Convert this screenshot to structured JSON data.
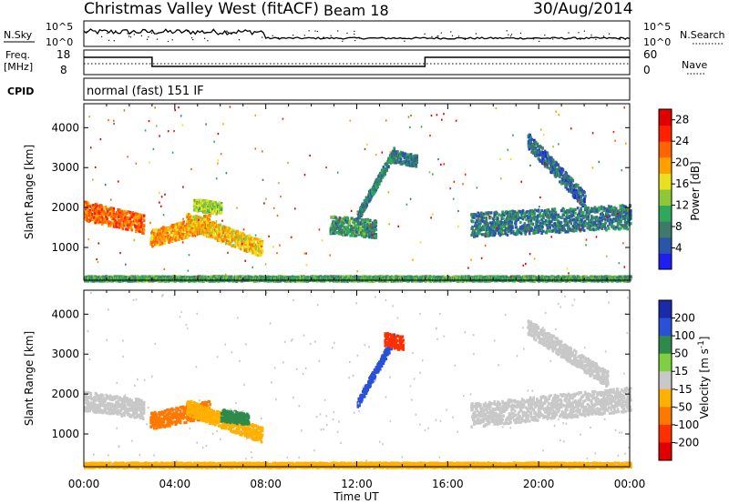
{
  "header": {
    "title": "Christmas Valley West (fitACF)",
    "beam": "Beam 18",
    "date": "30/Aug/2014"
  },
  "top_panels": {
    "nsky_label": "N.Sky",
    "nsearch_label": "N.Search",
    "noise_ticks": [
      "10^5",
      "10^0"
    ],
    "freq_label": "Freq.",
    "freq_unit": "[MHz]",
    "freq_ticks": [
      "18",
      "8"
    ],
    "nave_label": "Nave",
    "nave_ticks": [
      "60",
      "0"
    ],
    "cpid_label": "CPID",
    "cpid_value": "normal (fast) 151 IF"
  },
  "chart_data": [
    {
      "type": "heatmap",
      "title": "",
      "quantity": "Power",
      "xlabel": "Time UT",
      "ylabel": "Slant Range [km]",
      "xlim_hours": [
        0,
        24
      ],
      "ylim_km": [
        180,
        4600
      ],
      "x_ticks": [
        "00:00",
        "04:00",
        "08:00",
        "12:00",
        "16:00",
        "20:00",
        "00:00"
      ],
      "y_ticks": [
        1000,
        2000,
        3000,
        4000
      ],
      "colorbar": {
        "label": "Power [dB]",
        "ticks": [
          4,
          8,
          12,
          16,
          20,
          24,
          28
        ],
        "range": [
          0,
          30
        ],
        "colors": [
          "#1e1ef0",
          "#2a55a8",
          "#3d7a6a",
          "#2fa85a",
          "#8ec83a",
          "#e8e020",
          "#ffa000",
          "#ff6400",
          "#ff2000",
          "#e00000"
        ]
      },
      "echo_regions": [
        {
          "t0": 0.0,
          "t1": 2.6,
          "r_start": 1950,
          "r_end": 1620,
          "width": 480,
          "level": 22
        },
        {
          "t0": 2.9,
          "t1": 5.5,
          "r_start": 1250,
          "r_end": 1650,
          "width": 420,
          "level": 20
        },
        {
          "t0": 4.5,
          "t1": 7.8,
          "r_start": 1700,
          "r_end": 1000,
          "width": 420,
          "level": 18
        },
        {
          "t0": 4.8,
          "t1": 6.0,
          "r_start": 2100,
          "r_end": 2000,
          "width": 300,
          "level": 14
        },
        {
          "t0": 10.8,
          "t1": 12.8,
          "r_start": 1600,
          "r_end": 1500,
          "width": 450,
          "level": 9
        },
        {
          "t0": 12.0,
          "t1": 13.6,
          "r_start": 1800,
          "r_end": 3400,
          "width": 260,
          "level": 8
        },
        {
          "t0": 13.6,
          "t1": 14.6,
          "r_start": 3300,
          "r_end": 3200,
          "width": 300,
          "level": 7
        },
        {
          "t0": 17.0,
          "t1": 24.0,
          "r_start": 1600,
          "r_end": 1800,
          "width": 600,
          "level": 7
        },
        {
          "t0": 19.5,
          "t1": 22.0,
          "r_start": 3700,
          "r_end": 2200,
          "width": 400,
          "level": 6
        },
        {
          "t0": 0.0,
          "t1": 24.0,
          "r_start": 250,
          "r_end": 250,
          "width": 120,
          "level": 10
        }
      ]
    },
    {
      "type": "heatmap",
      "title": "",
      "quantity": "Velocity",
      "xlabel": "Time UT",
      "ylabel": "Slant Range [km]",
      "xlim_hours": [
        0,
        24
      ],
      "ylim_km": [
        180,
        4600
      ],
      "x_ticks": [
        "00:00",
        "04:00",
        "08:00",
        "12:00",
        "16:00",
        "20:00",
        "00:00"
      ],
      "y_ticks": [
        1000,
        2000,
        3000,
        4000
      ],
      "colorbar": {
        "label": "Velocity [m s^-1]",
        "ticks": [
          "200",
          "100",
          "50",
          "15",
          "-15",
          "-50",
          "-100",
          "-200"
        ],
        "colors": [
          "#1a2aa8",
          "#2a50d8",
          "#2e8a4a",
          "#7ed040",
          "#c8c8c8",
          "#ffb000",
          "#ff7800",
          "#ff3000",
          "#e00000"
        ]
      },
      "echo_regions": [
        {
          "t0": 0.0,
          "t1": 2.6,
          "r_start": 1850,
          "r_end": 1650,
          "width": 480,
          "level": 0
        },
        {
          "t0": 2.9,
          "t1": 5.5,
          "r_start": 1350,
          "r_end": 1650,
          "width": 420,
          "level": -60
        },
        {
          "t0": 4.5,
          "t1": 7.8,
          "r_start": 1700,
          "r_end": 1000,
          "width": 380,
          "level": -40
        },
        {
          "t0": 6.0,
          "t1": 7.2,
          "r_start": 1500,
          "r_end": 1400,
          "width": 300,
          "level": 80
        },
        {
          "t0": 12.0,
          "t1": 13.6,
          "r_start": 1800,
          "r_end": 3400,
          "width": 250,
          "level": 120
        },
        {
          "t0": 13.2,
          "t1": 14.0,
          "r_start": 3400,
          "r_end": 3300,
          "width": 350,
          "level": -150
        },
        {
          "t0": 17.0,
          "t1": 24.0,
          "r_start": 1500,
          "r_end": 1900,
          "width": 600,
          "level": 0
        },
        {
          "t0": 19.5,
          "t1": 23.0,
          "r_start": 3700,
          "r_end": 2400,
          "width": 400,
          "level": 0
        },
        {
          "t0": 0.0,
          "t1": 24.0,
          "r_start": 250,
          "r_end": 250,
          "width": 120,
          "level": -20
        }
      ]
    }
  ]
}
